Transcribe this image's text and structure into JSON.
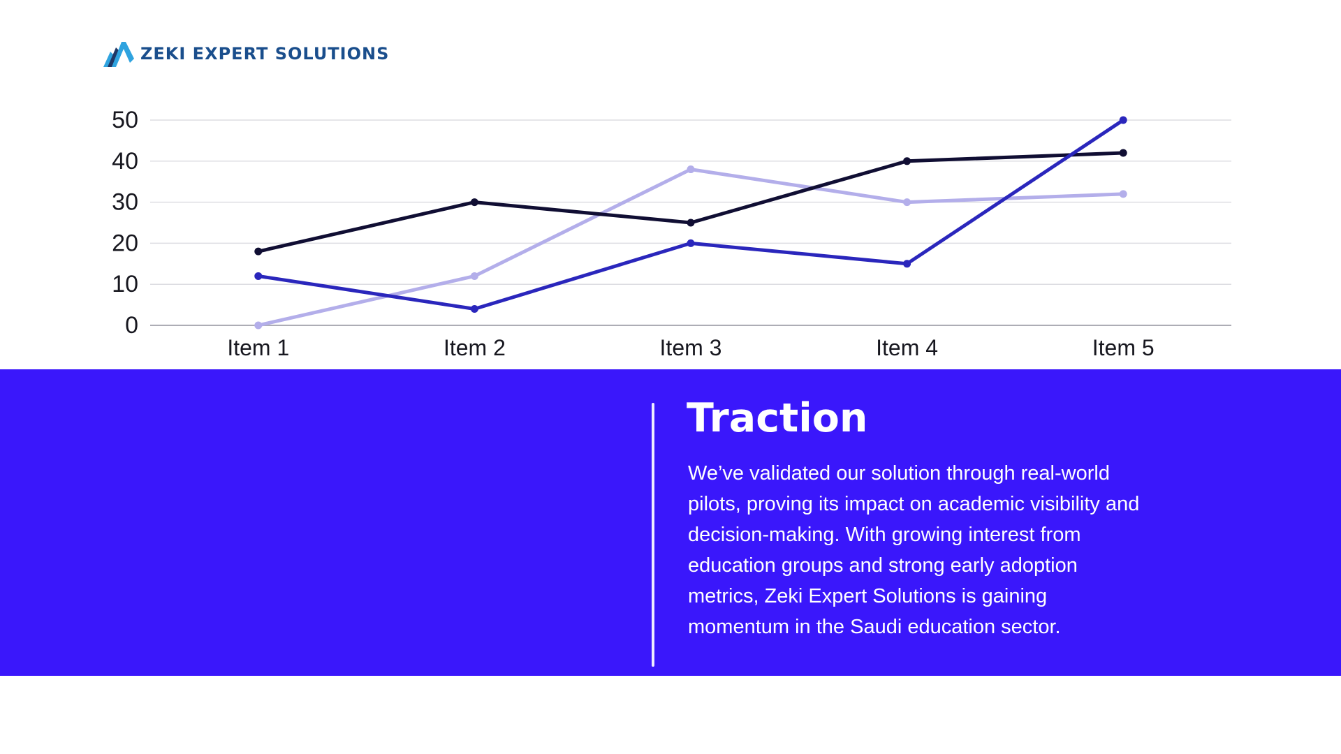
{
  "brand": {
    "name": "ZEKI EXPERT SOLUTIONS",
    "icon": "mountain-peaks-icon"
  },
  "section": {
    "title": "Traction",
    "body": "We’ve validated our solution through real-world pilots, proving its impact on academic visibility and decision-making. With growing interest from education groups and strong early adoption metrics, Zeki Expert Solutions is gaining momentum in the Saudi education sector."
  },
  "colors": {
    "band_background": "#3A17FB",
    "logo_text": "#1A4E8C",
    "logo_icon_light_blue": "#2FA3DF",
    "logo_icon_dark_navy": "#1F3766",
    "line_dark_navy": "#100E33",
    "line_blue": "#2A26BC",
    "line_lavender": "#B3AEEA",
    "gridline": "#DDDDE2",
    "zero_axis": "#ADADB5",
    "tick_text": "#17171F",
    "section_text": "#FFFFFF"
  },
  "chart_data": {
    "type": "line",
    "title": "",
    "xlabel": "",
    "ylabel": "",
    "categories": [
      "Item 1",
      "Item 2",
      "Item 3",
      "Item 4",
      "Item 5"
    ],
    "series": [
      {
        "name": "lavender",
        "color": "#B3AEEA",
        "values": [
          0,
          12,
          38,
          30,
          32
        ]
      },
      {
        "name": "dark-navy",
        "color": "#100E33",
        "values": [
          18,
          30,
          25,
          40,
          42
        ]
      },
      {
        "name": "blue",
        "color": "#2A26BC",
        "values": [
          12,
          4,
          20,
          15,
          50
        ]
      }
    ],
    "ylim": [
      0,
      50
    ],
    "yticks": [
      0,
      10,
      20,
      30,
      40,
      50
    ],
    "grid": true,
    "markers": true,
    "legend": "none"
  }
}
